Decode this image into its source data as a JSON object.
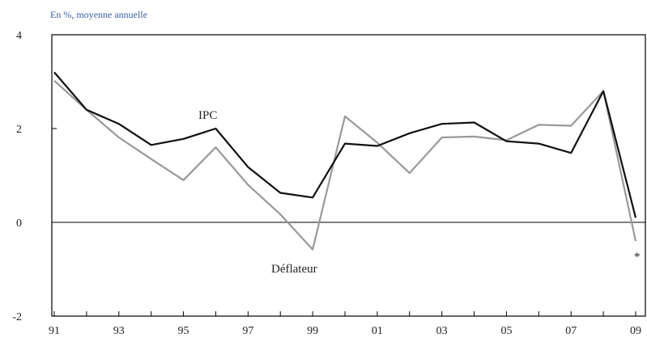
{
  "chart_data": {
    "type": "line",
    "unit_label": "En %, moyenne annuelle",
    "x": [
      "91",
      "92",
      "93",
      "94",
      "95",
      "96",
      "97",
      "98",
      "99",
      "00",
      "01",
      "02",
      "03",
      "04",
      "05",
      "06",
      "07",
      "08",
      "09"
    ],
    "x_tick_labels": [
      "91",
      "93",
      "95",
      "97",
      "99",
      "01",
      "03",
      "05",
      "07",
      "09"
    ],
    "y_tick_labels": [
      "4",
      "2",
      "0",
      "-2"
    ],
    "ylim": [
      -2,
      4
    ],
    "grid": false,
    "reference_line": 0,
    "series": [
      {
        "name": "IPC",
        "color": "#111111",
        "values": [
          3.2,
          2.4,
          2.1,
          1.65,
          1.78,
          2.0,
          1.18,
          0.63,
          0.53,
          1.68,
          1.63,
          1.9,
          2.1,
          2.13,
          1.73,
          1.68,
          1.48,
          2.8,
          0.1
        ]
      },
      {
        "name": "Déflateur",
        "color": "#999999",
        "values": [
          3.02,
          2.4,
          1.81,
          1.35,
          0.9,
          1.6,
          0.8,
          0.17,
          -0.58,
          2.26,
          1.7,
          1.05,
          1.81,
          1.83,
          1.75,
          2.08,
          2.06,
          2.8,
          -0.4
        ]
      }
    ],
    "annotations": [
      {
        "text": "IPC",
        "series": "IPC"
      },
      {
        "text": "Déflateur",
        "series": "Déflateur"
      },
      {
        "text": "*",
        "series": "Déflateur"
      }
    ]
  }
}
